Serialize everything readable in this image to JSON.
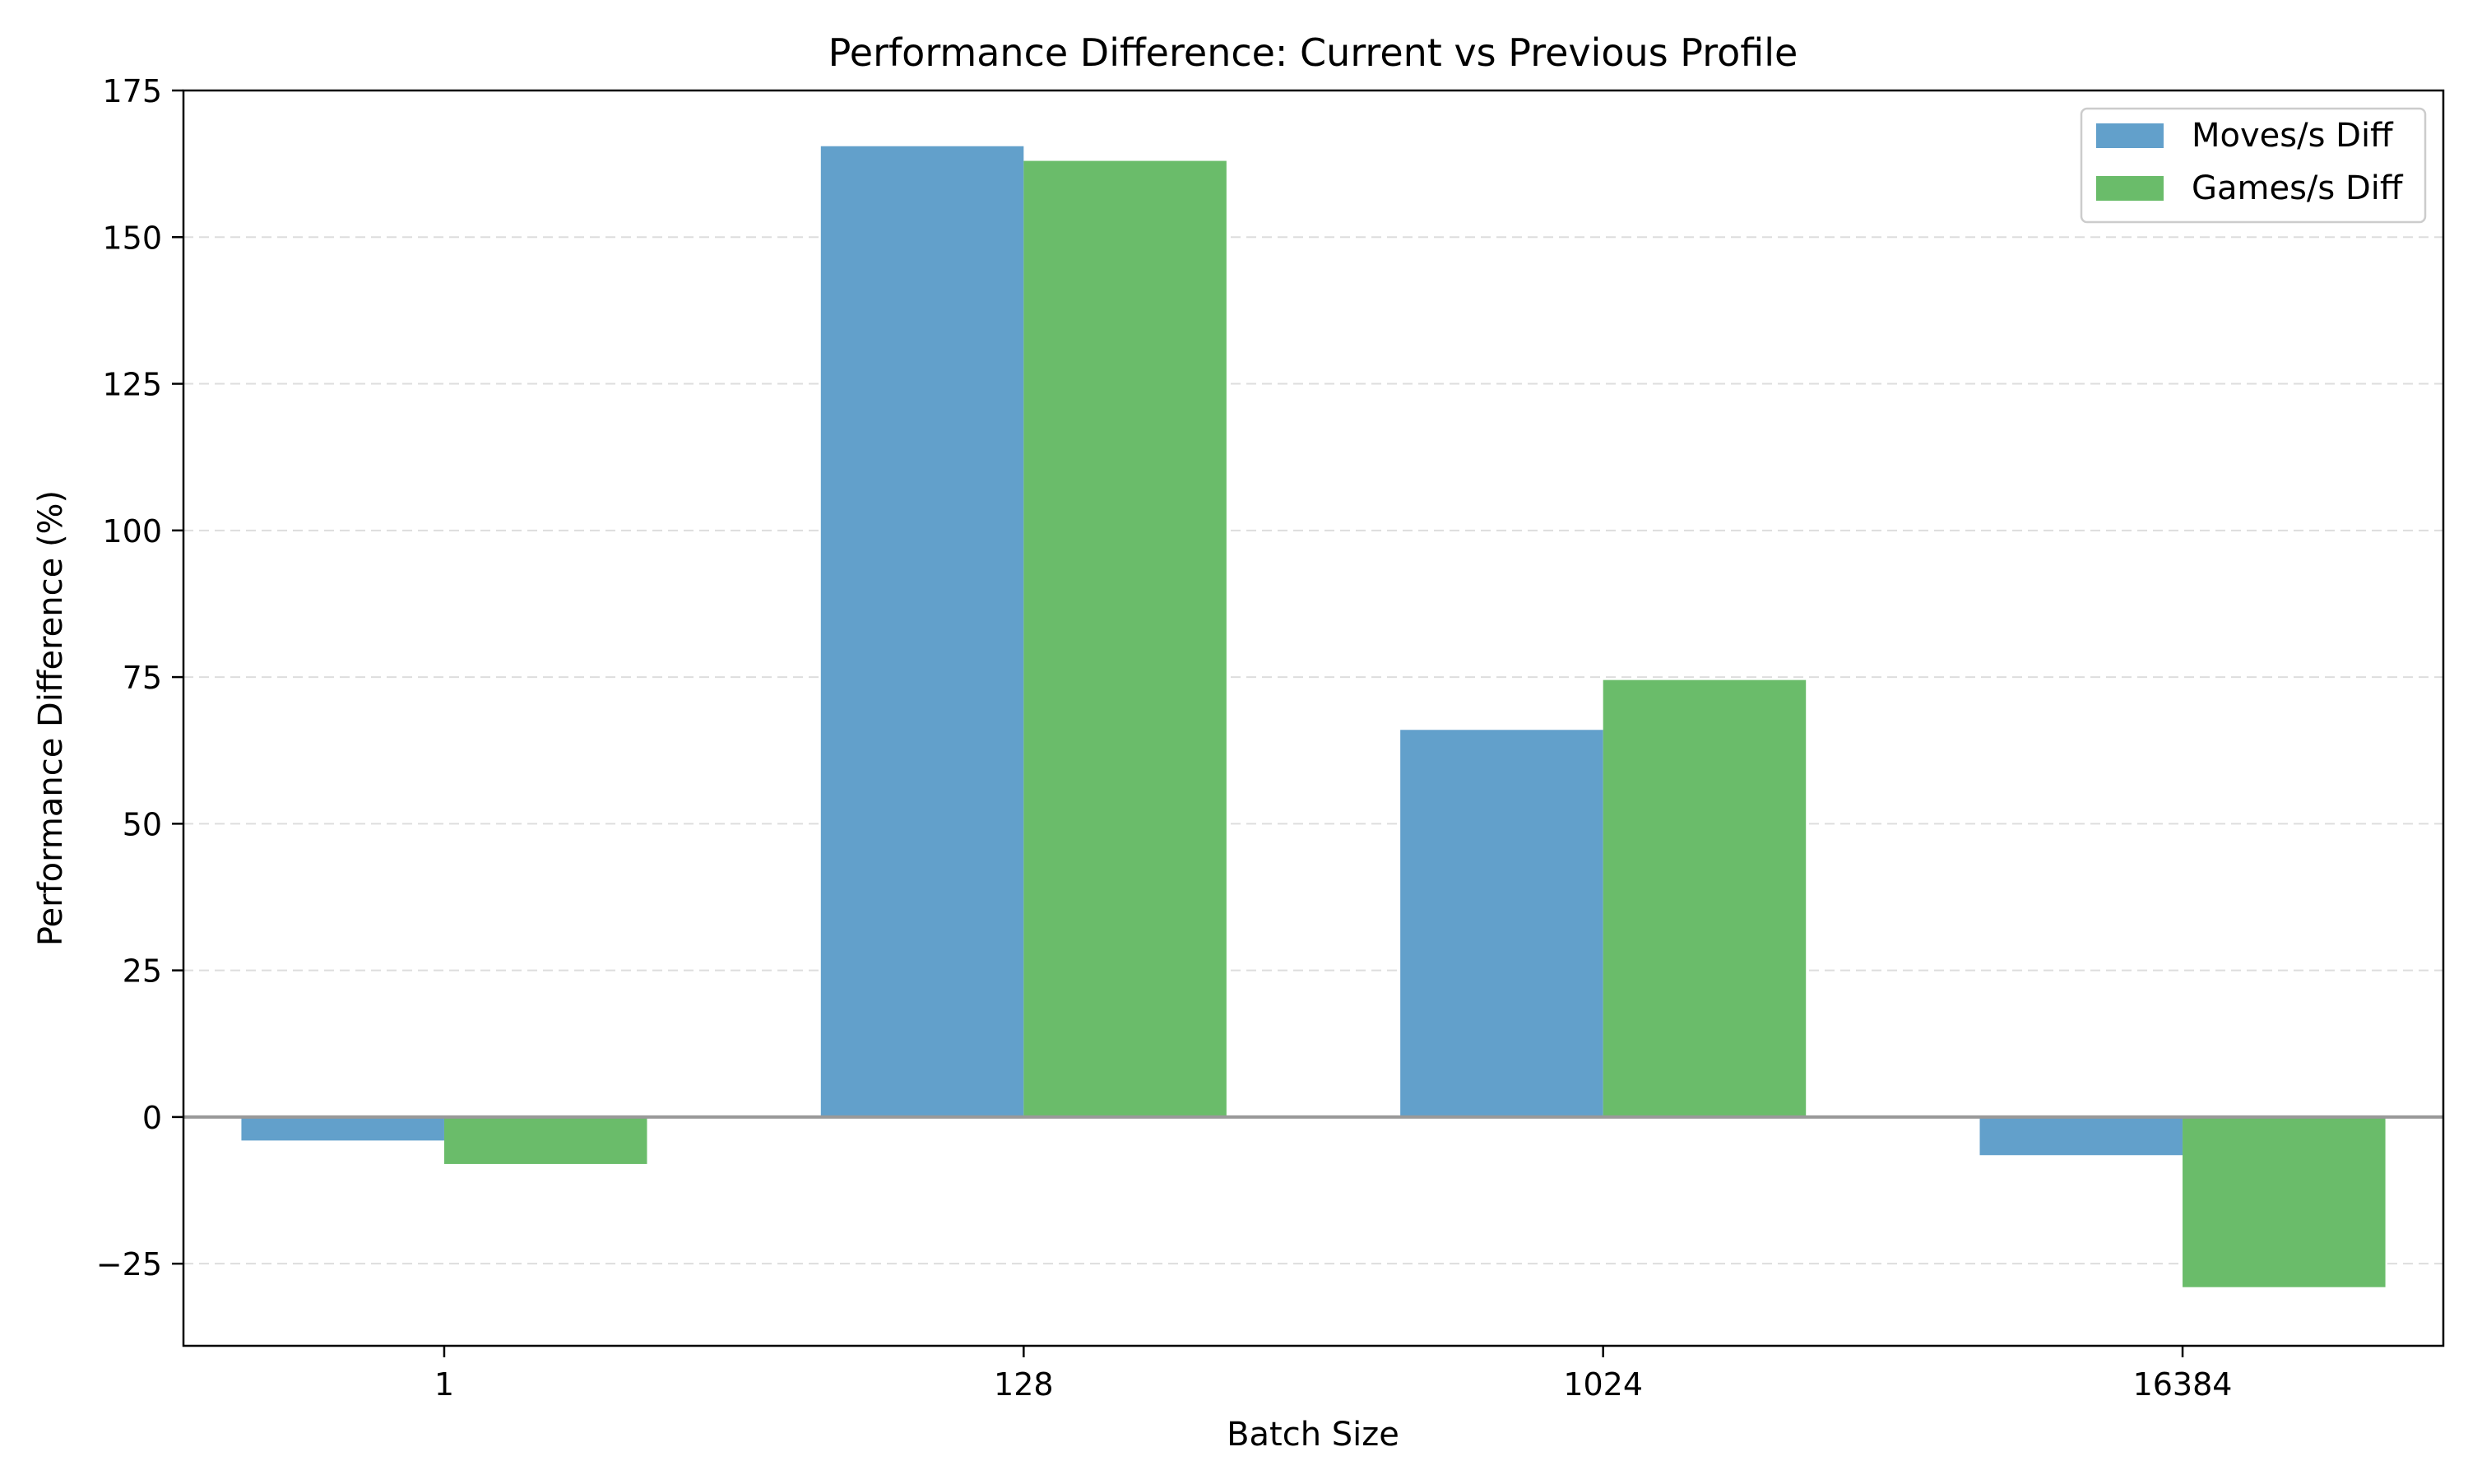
{
  "chart_data": {
    "type": "bar",
    "title": "Performance Difference: Current vs Previous Profile",
    "xlabel": "Batch Size",
    "ylabel": "Performance Difference (%)",
    "categories": [
      "1",
      "128",
      "1024",
      "16384"
    ],
    "series": [
      {
        "name": "Moves/s Diff",
        "color": "#62a0cb",
        "values": [
          -4,
          165.5,
          66,
          -6.5
        ]
      },
      {
        "name": "Games/s Diff",
        "color": "#6abc6a",
        "values": [
          -8,
          163,
          74.5,
          -29
        ]
      }
    ],
    "ylim": [
      -39,
      175
    ],
    "yticks": [
      -25,
      0,
      25,
      50,
      75,
      100,
      125,
      150,
      175
    ],
    "ytick_labels": [
      "−25",
      "0",
      "25",
      "50",
      "75",
      "100",
      "125",
      "150",
      "175"
    ],
    "grid": true,
    "zero_line": true,
    "legend_position": "top-right"
  }
}
